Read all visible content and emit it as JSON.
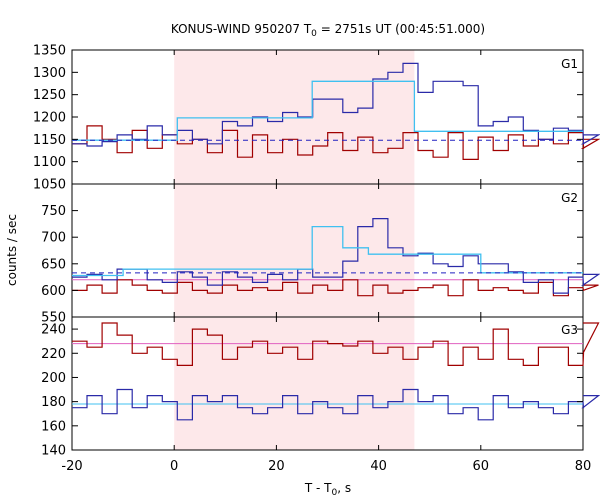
{
  "chart_data": {
    "type": "line",
    "title": "KONUS-WIND 950207 T",
    "title_sub": "0",
    "title_rest": " = 2751s UT (00:45:51.000)",
    "xlabel": "T - T",
    "xlabel_sub": "0",
    "xlabel_rest": ", s",
    "ylabel": "counts / sec",
    "xlim": [
      -20,
      80
    ],
    "x_ticks": [
      "-20",
      "0",
      "20",
      "40",
      "60",
      "80"
    ],
    "shaded_interval": [
      0,
      47
    ],
    "bin_width": 2.944,
    "x_start": -20,
    "colors": {
      "data_red": "#a00000",
      "data_blue": "#2a2aa8",
      "model_cyan": "#40c0f0",
      "fit_pink": "#e060c0",
      "background_dash": "#2020c0",
      "shade": "#fde8ea"
    },
    "panels": [
      {
        "label": "G1",
        "ylim": [
          1050,
          1350
        ],
        "y_ticks": [
          "1050",
          "1100",
          "1150",
          "1200",
          "1250",
          "1300",
          "1350"
        ],
        "red": [
          1140,
          1180,
          1150,
          1120,
          1170,
          1130,
          1160,
          1140,
          1150,
          1120,
          1170,
          1110,
          1160,
          1120,
          1150,
          1115,
          1135,
          1165,
          1125,
          1155,
          1120,
          1130,
          1165,
          1125,
          1110,
          1165,
          1105,
          1155,
          1125,
          1160,
          1135,
          1150,
          1140,
          1165,
          1130,
          1150
        ],
        "blue": [
          1140,
          1135,
          1145,
          1160,
          1150,
          1180,
          1160,
          1170,
          1150,
          1140,
          1190,
          1180,
          1200,
          1190,
          1210,
          1200,
          1240,
          1240,
          1210,
          1220,
          1285,
          1300,
          1320,
          1255,
          1280,
          1280,
          1270,
          1180,
          1190,
          1200,
          1170,
          1150,
          1175,
          1170,
          1140,
          1160
        ],
        "background": 1148,
        "model_segments": [
          {
            "x0": -20,
            "x1": 0.6,
            "y": 1148
          },
          {
            "x0": 0.6,
            "x1": 27,
            "y": 1198
          },
          {
            "x0": 27,
            "x1": 47,
            "y": 1280
          },
          {
            "x0": 47,
            "x1": 80,
            "y": 1168
          }
        ]
      },
      {
        "label": "G2",
        "ylim": [
          550,
          800
        ],
        "y_ticks": [
          "550",
          "600",
          "650",
          "700",
          "750"
        ],
        "red": [
          600,
          610,
          595,
          620,
          610,
          600,
          595,
          615,
          600,
          595,
          610,
          600,
          605,
          600,
          615,
          595,
          610,
          600,
          620,
          590,
          610,
          595,
          600,
          605,
          610,
          590,
          620,
          600,
          605,
          600,
          595,
          615,
          590,
          605,
          600,
          610
        ],
        "blue": [
          625,
          630,
          620,
          640,
          640,
          620,
          615,
          635,
          625,
          610,
          635,
          625,
          615,
          630,
          620,
          640,
          625,
          625,
          655,
          720,
          735,
          680,
          665,
          670,
          650,
          645,
          665,
          650,
          650,
          635,
          615,
          620,
          595,
          625,
          610,
          630
        ],
        "background": 633,
        "model_segments": [
          {
            "x0": -20,
            "x1": -10,
            "y": 628
          },
          {
            "x0": -10,
            "x1": 27,
            "y": 640
          },
          {
            "x0": 27,
            "x1": 33,
            "y": 720
          },
          {
            "x0": 33,
            "x1": 38,
            "y": 680
          },
          {
            "x0": 38,
            "x1": 60,
            "y": 668
          },
          {
            "x0": 60,
            "x1": 80,
            "y": 633
          }
        ],
        "fit": 620
      },
      {
        "label": "G3",
        "ylim": [
          140,
          250
        ],
        "y_ticks": [
          "140",
          "160",
          "180",
          "200",
          "220",
          "240"
        ],
        "red": [
          230,
          225,
          245,
          235,
          220,
          225,
          215,
          210,
          240,
          235,
          215,
          225,
          230,
          220,
          225,
          215,
          230,
          228,
          226,
          230,
          220,
          225,
          215,
          225,
          230,
          210,
          225,
          215,
          240,
          215,
          210,
          225,
          225,
          210,
          220,
          245
        ],
        "blue": [
          175,
          185,
          170,
          190,
          175,
          185,
          180,
          165,
          185,
          180,
          185,
          175,
          170,
          175,
          185,
          170,
          180,
          175,
          170,
          185,
          175,
          180,
          190,
          180,
          185,
          170,
          175,
          165,
          185,
          175,
          180,
          175,
          170,
          180,
          175,
          185
        ],
        "fit_red": 228,
        "fit_blue": 178
      }
    ]
  }
}
